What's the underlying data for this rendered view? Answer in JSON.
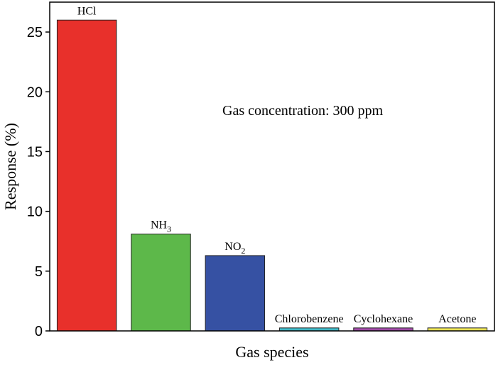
{
  "chart_data": {
    "type": "bar",
    "categories": [
      "HCl",
      "NH3",
      "NO2",
      "Chlorobenzene",
      "Cyclohexane",
      "Acetone"
    ],
    "category_labels": [
      {
        "base": "HCl",
        "sub": ""
      },
      {
        "base": "NH",
        "sub": "3"
      },
      {
        "base": "NO",
        "sub": "2"
      },
      {
        "base": "Chlorobenzene",
        "sub": ""
      },
      {
        "base": "Cyclohexane",
        "sub": ""
      },
      {
        "base": "Acetone",
        "sub": ""
      }
    ],
    "values": [
      26.0,
      8.1,
      6.3,
      0.25,
      0.25,
      0.25
    ],
    "colors": [
      "#e8302b",
      "#5db84a",
      "#3651a3",
      "#3fb8c6",
      "#a04aa6",
      "#e9e255"
    ],
    "xlabel": "Gas species",
    "ylabel": "Response (%)",
    "ylim": [
      0,
      27.5
    ],
    "yticks": [
      0,
      5,
      10,
      15,
      20,
      25
    ],
    "annotation": "Gas concentration: 300 ppm",
    "grid": false,
    "legend": "none"
  }
}
